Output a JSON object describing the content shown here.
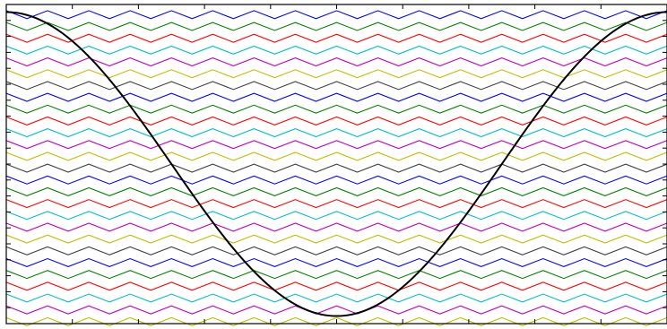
{
  "chart_data": {
    "type": "line",
    "title": "",
    "xlabel": "",
    "ylabel": "",
    "xlim": [
      0,
      1
    ],
    "ylim": [
      -1.05,
      1.05
    ],
    "grid": false,
    "legend": "none",
    "zigzag_colors": [
      "#0000ff",
      "#008000",
      "#ff0000",
      "#00bfbf",
      "#bf00bf",
      "#bfbf00",
      "#404040"
    ],
    "zigzag_series": {
      "count": 27,
      "period": 0.0625,
      "amplitude": 0.0262,
      "offset_top": 0.983,
      "offset_step": -0.0777
    },
    "curve": {
      "name": "",
      "color": "#000000",
      "function": "cosine",
      "amplitude": 1,
      "period": 1,
      "points": [
        {
          "x": 0.0,
          "y": 1.0
        },
        {
          "x": 0.25,
          "y": 0.0
        },
        {
          "x": 0.5,
          "y": -1.0
        },
        {
          "x": 0.75,
          "y": 0.0
        },
        {
          "x": 1.0,
          "y": 1.0
        }
      ]
    }
  }
}
